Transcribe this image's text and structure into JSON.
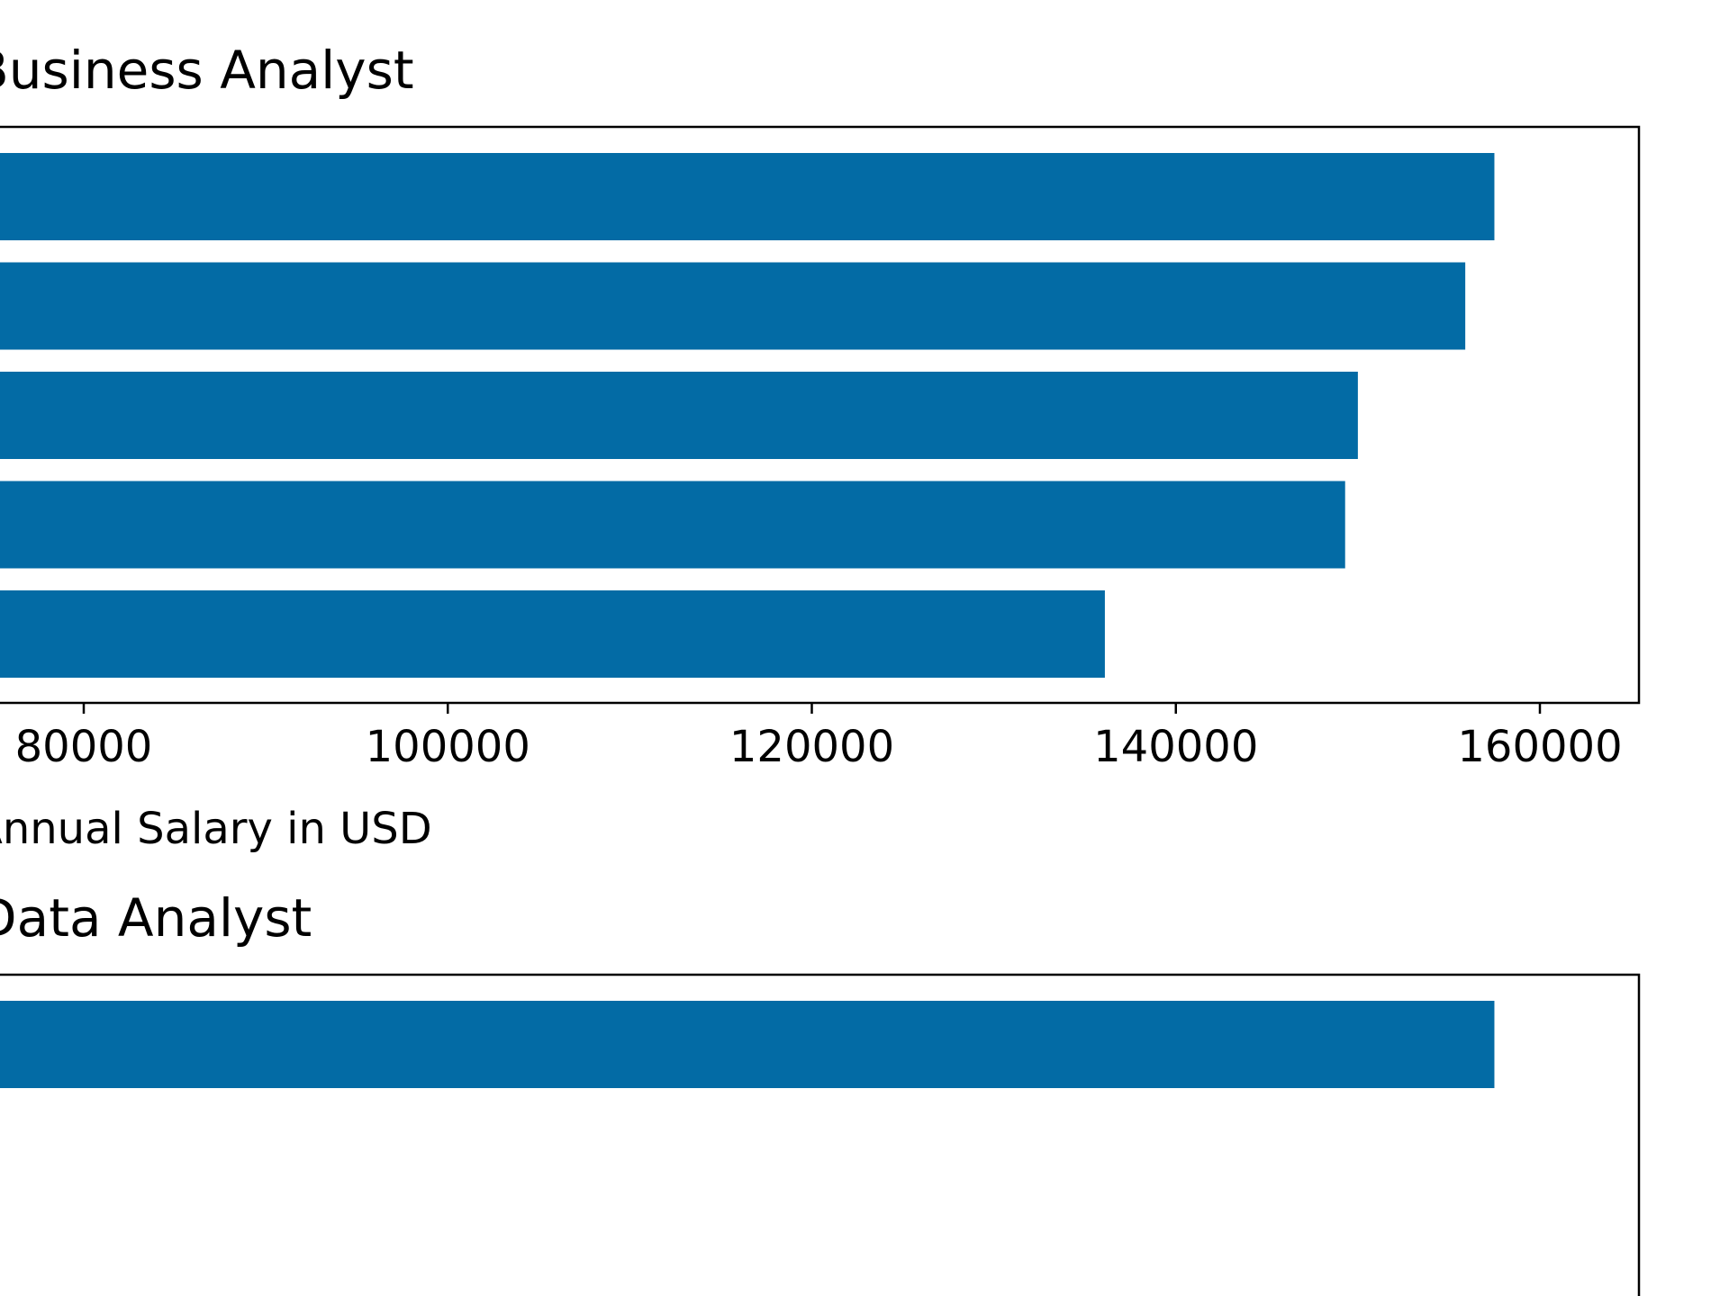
{
  "chart_data": [
    {
      "type": "bar",
      "orientation": "horizontal",
      "title": "Business Analyst",
      "values": [
        157500,
        155900,
        150000,
        149300,
        136100
      ],
      "xlabel": "Annual Salary in USD",
      "ylabel": "",
      "xticks": [
        "80000",
        "100000",
        "120000",
        "140000",
        "160000"
      ],
      "xlim": [
        70000,
        165000
      ],
      "bar_color": "#036ba5",
      "grid": false
    },
    {
      "type": "bar",
      "orientation": "horizontal",
      "title": "Data Analyst",
      "values": [
        157500
      ],
      "xlabel": "",
      "ylabel": "",
      "xticks": [],
      "xlim": [
        70000,
        165000
      ],
      "bar_color": "#036ba5",
      "grid": false
    }
  ]
}
